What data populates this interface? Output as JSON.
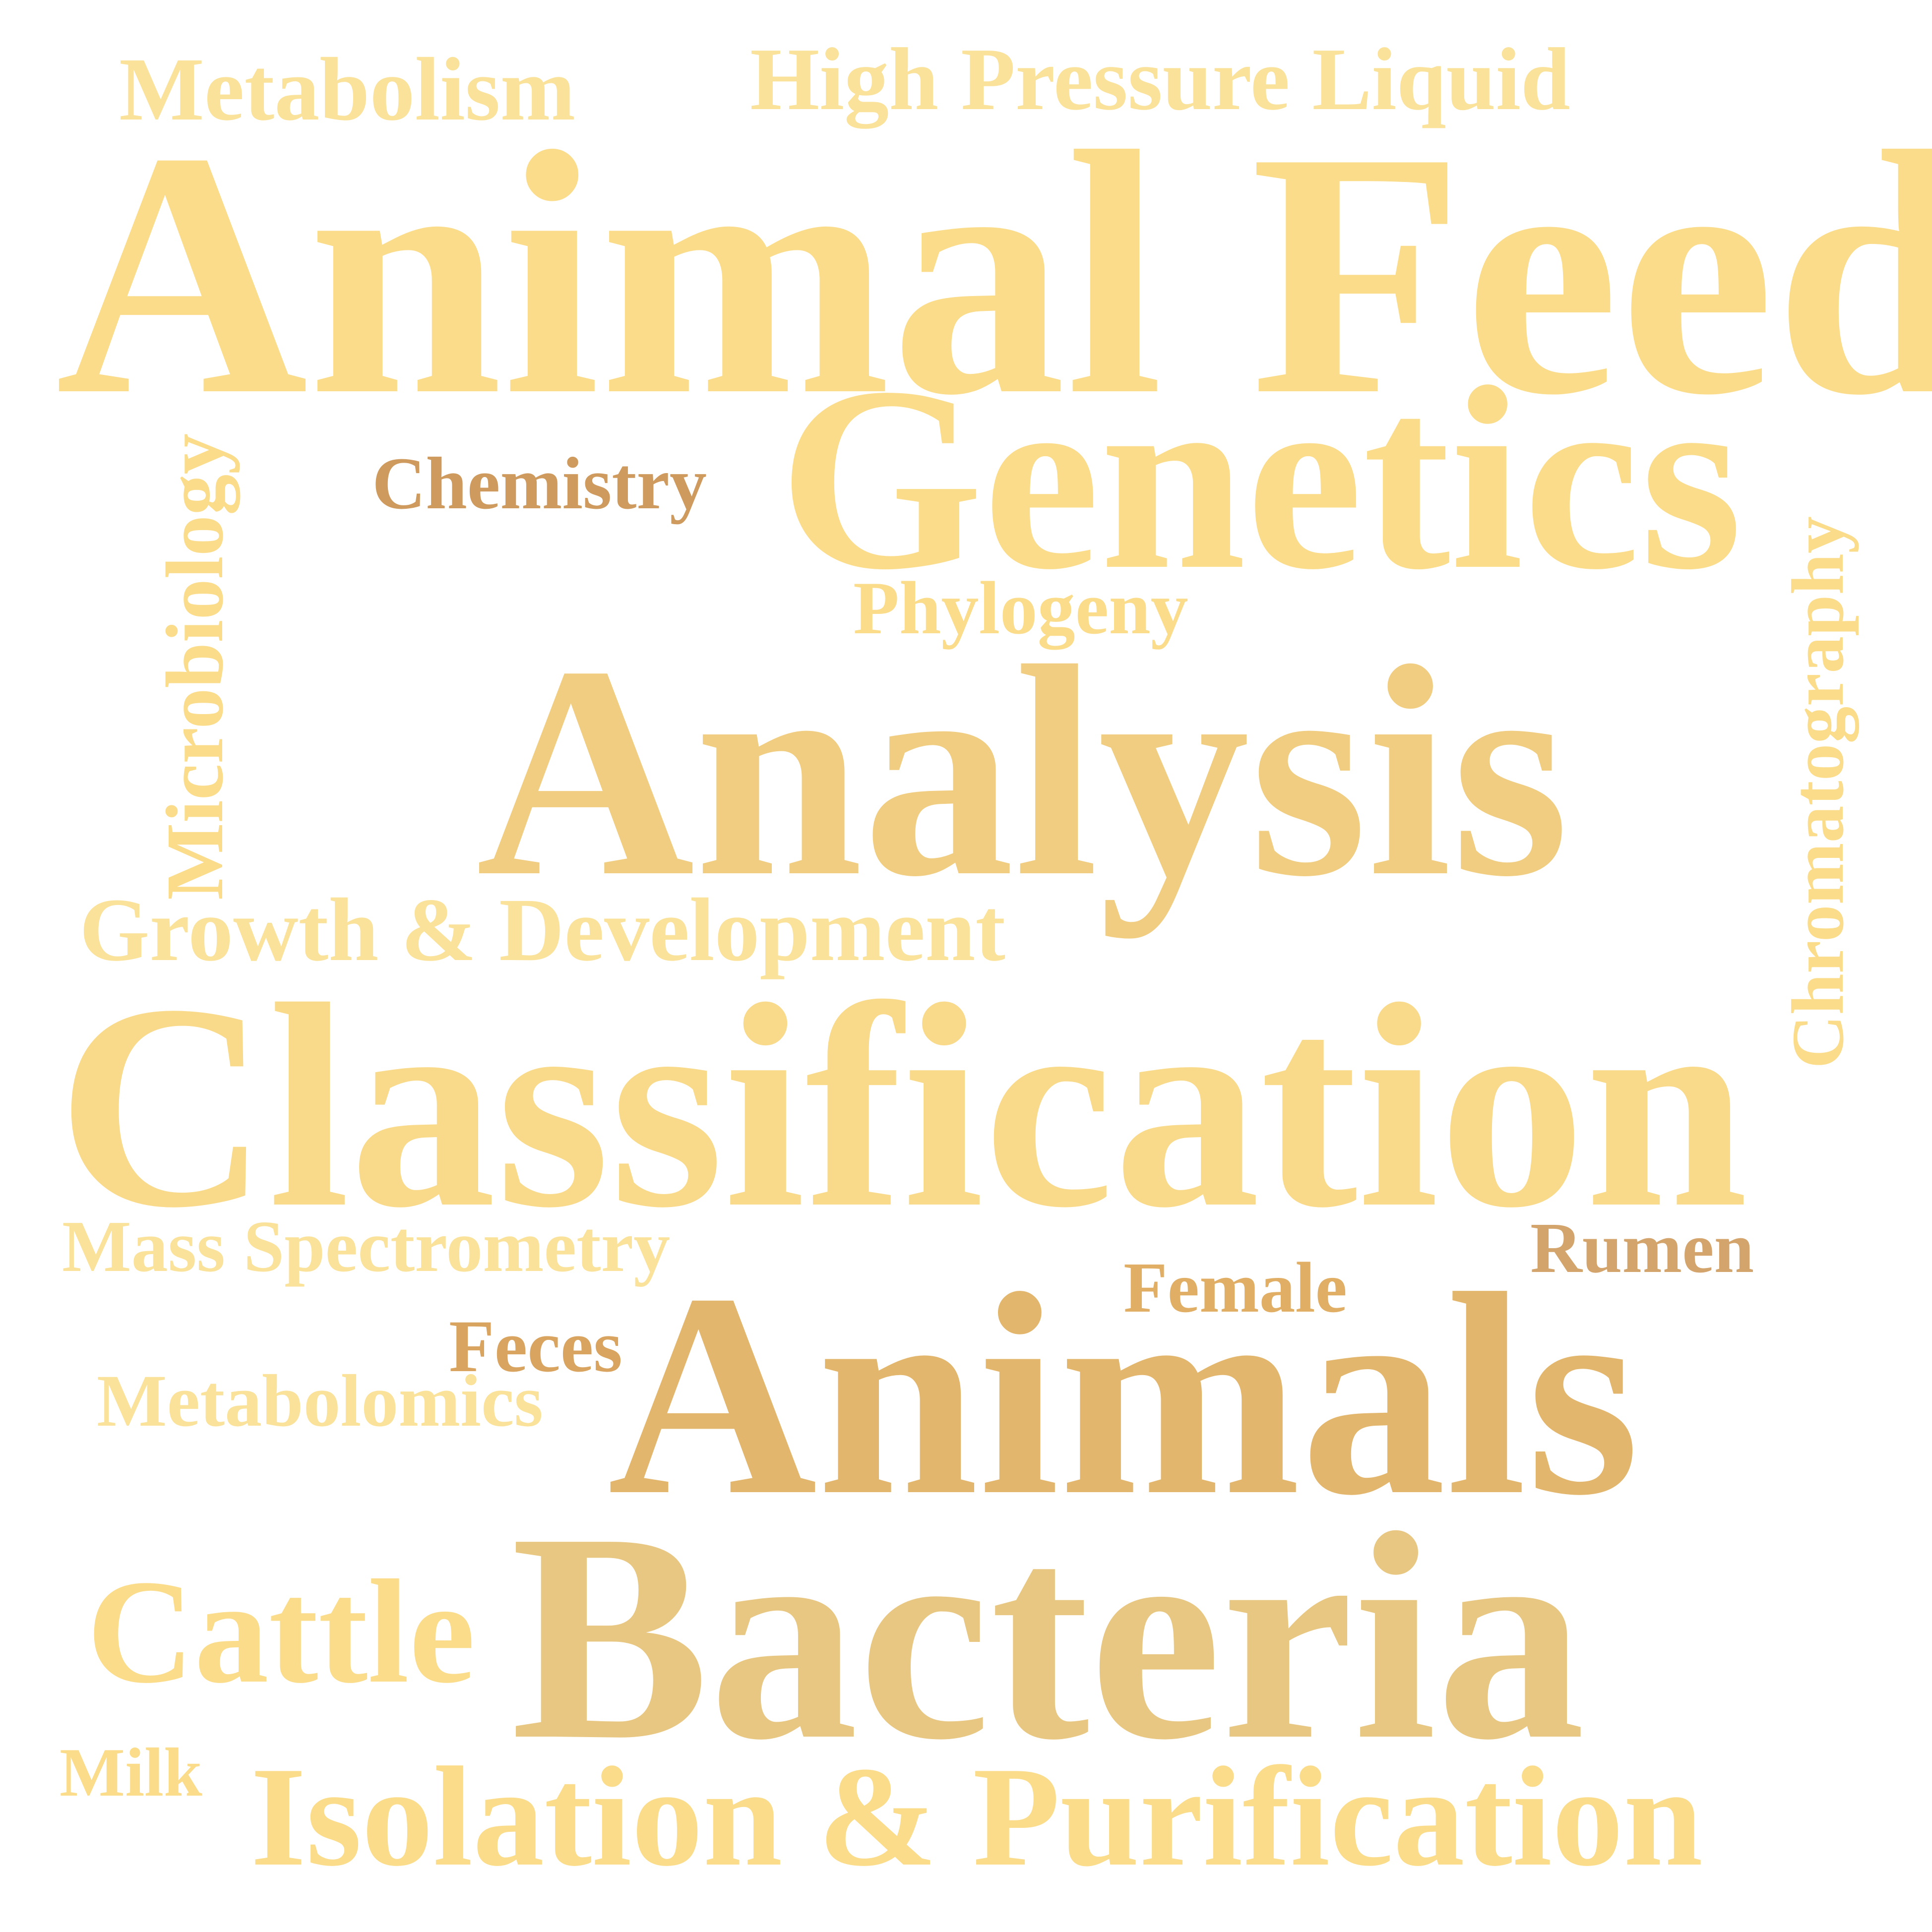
{
  "words": [
    {
      "key": "metabolism",
      "text": "Metabolism",
      "color": "#FAE29A"
    },
    {
      "key": "hplc",
      "text": "High Pressure Liquid",
      "color": "#FAE29A"
    },
    {
      "key": "animal_feed",
      "text": "Animal Feed",
      "color": "#FADC8A"
    },
    {
      "key": "genetics",
      "text": "Genetics",
      "color": "#FADC8A"
    },
    {
      "key": "chemistry",
      "text": "Chemistry",
      "color": "#CE9A5E"
    },
    {
      "key": "microbiology",
      "text": "Microbiology",
      "color": "#FADC8A",
      "orientation": "vertical"
    },
    {
      "key": "chromatography",
      "text": "Chromatography",
      "color": "#FADC8A",
      "orientation": "vertical"
    },
    {
      "key": "phylogeny",
      "text": "Phylogeny",
      "color": "#FADC8A"
    },
    {
      "key": "analysis",
      "text": "Analysis",
      "color": "#F0CD81"
    },
    {
      "key": "growth",
      "text": "Growth & Development",
      "color": "#FAE29A"
    },
    {
      "key": "classification",
      "text": "Classification",
      "color": "#F9DA8A"
    },
    {
      "key": "mass_spec",
      "text": "Mass Spectrometry",
      "color": "#FAE29A"
    },
    {
      "key": "rumen",
      "text": "Rumen",
      "color": "#D3A46C"
    },
    {
      "key": "female",
      "text": "Female",
      "color": "#E0AE64"
    },
    {
      "key": "feces",
      "text": "Feces",
      "color": "#D9A45F"
    },
    {
      "key": "animals",
      "text": "Animals",
      "color": "#E3B66D"
    },
    {
      "key": "metabolomics",
      "text": "Metabolomics",
      "color": "#FAE29A"
    },
    {
      "key": "cattle",
      "text": "Cattle",
      "color": "#FADC8A"
    },
    {
      "key": "bacteria",
      "text": "Bacteria",
      "color": "#E8C782"
    },
    {
      "key": "milk",
      "text": "Milk",
      "color": "#FADC8A"
    },
    {
      "key": "isolation",
      "text": "Isolation & Purification",
      "color": "#FADC8A"
    }
  ]
}
